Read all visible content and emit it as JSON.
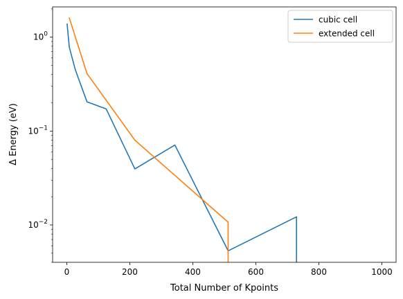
{
  "chart_data": {
    "type": "line",
    "title": "",
    "xlabel": "Total Number of Kpoints",
    "ylabel": "Δ Energy (eV)",
    "xlim": [
      -45,
      1045
    ],
    "ylim": [
      0.004,
      2.1
    ],
    "yscale": "log",
    "xticks": [
      0,
      200,
      400,
      600,
      800,
      1000
    ],
    "xtick_labels": [
      "0",
      "200",
      "400",
      "600",
      "800",
      "1000"
    ],
    "yticks": [
      0.01,
      0.1,
      1
    ],
    "ytick_labels": [
      {
        "base": "10",
        "exp": "−2"
      },
      {
        "base": "10",
        "exp": "−1"
      },
      {
        "base": "10",
        "exp": "0"
      }
    ],
    "grid": false,
    "legend_position": "top-right",
    "series": [
      {
        "name": "cubic cell",
        "color": "#1f77b4",
        "x": [
          1,
          8,
          27,
          64,
          125,
          216,
          343,
          512,
          729,
          729
        ],
        "y": [
          1.38,
          0.78,
          0.45,
          0.205,
          0.172,
          0.0395,
          0.071,
          0.0053,
          0.0122,
          0.0035
        ]
      },
      {
        "name": "extended cell",
        "color": "#ff7f0e",
        "x": [
          8,
          64,
          216,
          512,
          512
        ],
        "y": [
          1.6,
          0.41,
          0.08,
          0.0107,
          0.0035
        ]
      }
    ]
  }
}
